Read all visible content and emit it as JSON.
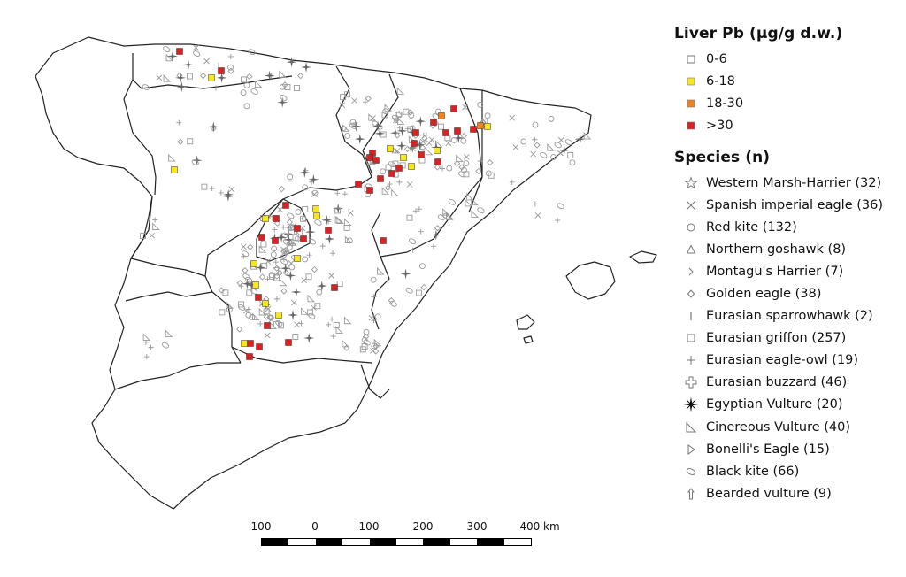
{
  "legend": {
    "pb_title": "Liver Pb (µg/g d.w.)",
    "pb_classes": [
      {
        "label": "0-6",
        "color": "#ffffff"
      },
      {
        "label": "6-18",
        "color": "#f5e61e"
      },
      {
        "label": "18-30",
        "color": "#f0821e"
      },
      {
        "label": ">30",
        "color": "#d72323"
      }
    ],
    "species_title": "Species (n)",
    "species": [
      {
        "label": "Western Marsh-Harrier (32)",
        "icon": "star-outline-icon"
      },
      {
        "label": "Spanish imperial eagle (36)",
        "icon": "x-cross-icon"
      },
      {
        "label": "Red kite (132)",
        "icon": "circle-icon"
      },
      {
        "label": "Northern goshawk (8)",
        "icon": "triangle-icon"
      },
      {
        "label": "Montagu's Harrier (7)",
        "icon": "chevron-right-icon"
      },
      {
        "label": "Golden eagle (38)",
        "icon": "diamond-icon"
      },
      {
        "label": "Eurasian sparrowhawk (2)",
        "icon": "vertical-bar-icon"
      },
      {
        "label": "Eurasian griffon (257)",
        "icon": "square-icon"
      },
      {
        "label": "Eurasian eagle-owl (19)",
        "icon": "plus-icon"
      },
      {
        "label": "Eurasian buzzard (46)",
        "icon": "cross-outline-icon"
      },
      {
        "label": "Egyptian Vulture (20)",
        "icon": "star-burst-icon"
      },
      {
        "label": "Cinereous Vulture (40)",
        "icon": "right-triangle-icon"
      },
      {
        "label": "Bonelli's Eagle (15)",
        "icon": "half-triangle-icon"
      },
      {
        "label": "Black kite (66)",
        "icon": "ellipse-icon"
      },
      {
        "label": "Bearded vulture (9)",
        "icon": "arrow-up-icon"
      }
    ]
  },
  "scale_bar": {
    "ticks": [
      "100",
      "0",
      "100",
      "200",
      "300",
      "400 km"
    ]
  },
  "map": {
    "highlight_region_labels": []
  }
}
